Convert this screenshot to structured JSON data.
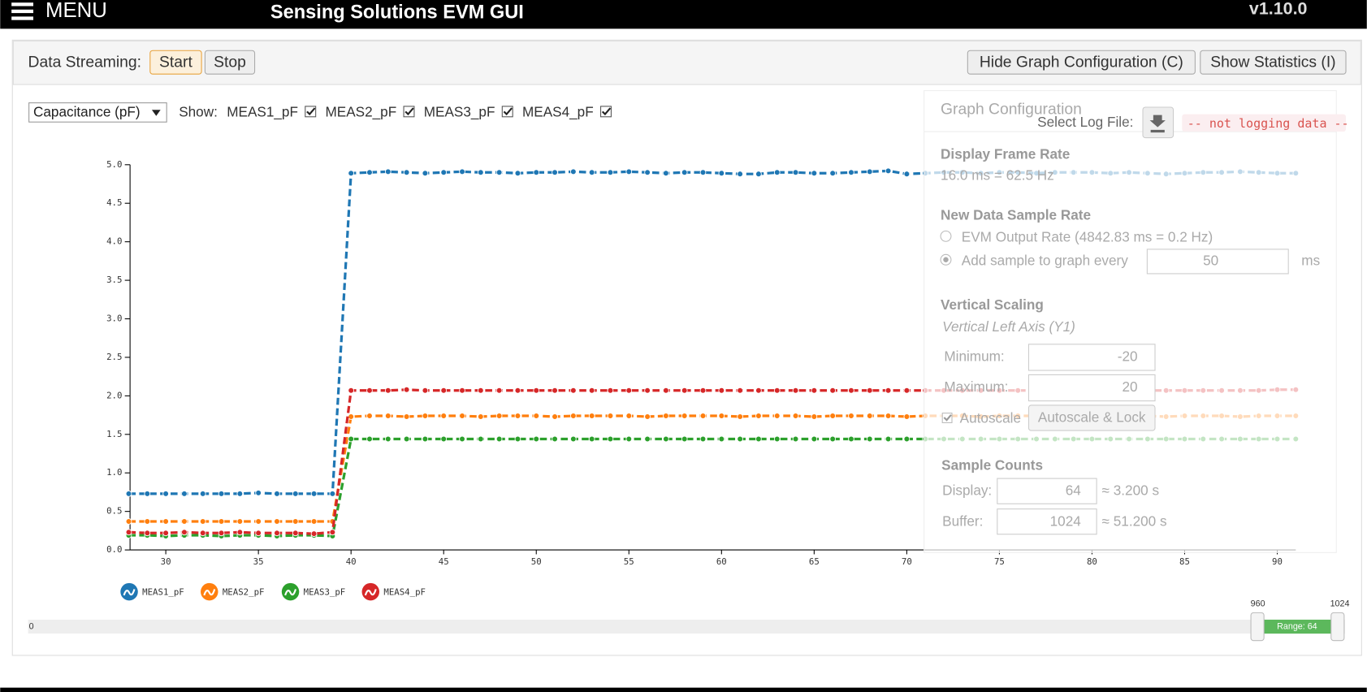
{
  "header": {
    "menu": "MENU",
    "title": "Sensing Solutions EVM GUI",
    "version": "v1.10.0"
  },
  "toolbar": {
    "streaming_label": "Data Streaming:",
    "start": "Start",
    "stop": "Stop",
    "hide_config": "Hide Graph Configuration (C)",
    "show_stats": "Show Statistics (I)"
  },
  "controls": {
    "unit_select": "Capacitance (pF)",
    "show_label": "Show:",
    "toggles": [
      "MEAS1_pF",
      "MEAS2_pF",
      "MEAS3_pF",
      "MEAS4_pF"
    ]
  },
  "chart_data": {
    "type": "line",
    "x": [
      28,
      29,
      30,
      31,
      32,
      33,
      34,
      35,
      36,
      37,
      38,
      39,
      40,
      41,
      42,
      43,
      44,
      45,
      46,
      47,
      48,
      49,
      50,
      51,
      52,
      53,
      54,
      55,
      56,
      57,
      58,
      59,
      60,
      61,
      62,
      63,
      64,
      65,
      66,
      67,
      68,
      69,
      70,
      71,
      72,
      73,
      74,
      75,
      76,
      77,
      78,
      79,
      80,
      81,
      82,
      83,
      84,
      85,
      86,
      87,
      88,
      89,
      90,
      91
    ],
    "xlim": [
      28,
      91
    ],
    "ylim": [
      0,
      5
    ],
    "xticks": [
      30,
      35,
      40,
      45,
      50,
      55,
      60,
      65,
      70,
      75,
      80,
      85,
      90
    ],
    "yticks": [
      {
        "value": 0,
        "label": "0.0"
      },
      0.5,
      {
        "value": 1,
        "label": "1.0"
      },
      1.5,
      {
        "value": 2,
        "label": "2.0"
      },
      2.5,
      {
        "value": 3,
        "label": "3.0"
      },
      3.5,
      {
        "value": 4,
        "label": "4.0"
      },
      4.5,
      {
        "value": 5,
        "label": "5.0"
      }
    ],
    "legend": "bottom-left",
    "series": [
      {
        "name": "MEAS1_pF",
        "color": "#1f77b4",
        "values": [
          0.73,
          0.73,
          0.73,
          0.73,
          0.73,
          0.73,
          0.73,
          0.74,
          0.73,
          0.73,
          0.73,
          0.73,
          4.89,
          4.9,
          4.91,
          4.9,
          4.89,
          4.9,
          4.91,
          4.9,
          4.9,
          4.89,
          4.9,
          4.9,
          4.91,
          4.9,
          4.9,
          4.91,
          4.9,
          4.89,
          4.9,
          4.9,
          4.89,
          4.88,
          4.88,
          4.9,
          4.9,
          4.89,
          4.89,
          4.9,
          4.91,
          4.92,
          4.88,
          4.89,
          4.9,
          4.9,
          4.89,
          4.9,
          4.9,
          4.89,
          4.9,
          4.9,
          4.9,
          4.89,
          4.9,
          4.89,
          4.88,
          4.89,
          4.9,
          4.9,
          4.91,
          4.9,
          4.89,
          4.89
        ]
      },
      {
        "name": "MEAS2_pF",
        "color": "#ff7f0e",
        "values": [
          0.37,
          0.37,
          0.37,
          0.37,
          0.37,
          0.37,
          0.37,
          0.37,
          0.37,
          0.37,
          0.37,
          0.37,
          1.73,
          1.74,
          1.74,
          1.73,
          1.74,
          1.74,
          1.74,
          1.73,
          1.74,
          1.74,
          1.74,
          1.73,
          1.74,
          1.74,
          1.74,
          1.74,
          1.73,
          1.74,
          1.74,
          1.74,
          1.74,
          1.73,
          1.74,
          1.74,
          1.74,
          1.73,
          1.74,
          1.74,
          1.74,
          1.74,
          1.73,
          1.74,
          1.74,
          1.74,
          1.73,
          1.74,
          1.74,
          1.74,
          1.74,
          1.73,
          1.74,
          1.74,
          1.74,
          1.74,
          1.73,
          1.74,
          1.74,
          1.74,
          1.73,
          1.74,
          1.74,
          1.74
        ]
      },
      {
        "name": "MEAS3_pF",
        "color": "#2ca02c",
        "values": [
          0.19,
          0.19,
          0.18,
          0.19,
          0.19,
          0.18,
          0.19,
          0.19,
          0.18,
          0.19,
          0.19,
          0.18,
          1.44,
          1.44,
          1.44,
          1.44,
          1.44,
          1.44,
          1.44,
          1.44,
          1.44,
          1.44,
          1.44,
          1.44,
          1.44,
          1.44,
          1.44,
          1.44,
          1.44,
          1.44,
          1.44,
          1.44,
          1.44,
          1.44,
          1.44,
          1.44,
          1.44,
          1.44,
          1.44,
          1.44,
          1.44,
          1.44,
          1.44,
          1.44,
          1.44,
          1.44,
          1.44,
          1.44,
          1.44,
          1.44,
          1.44,
          1.44,
          1.44,
          1.44,
          1.44,
          1.44,
          1.44,
          1.44,
          1.44,
          1.44,
          1.44,
          1.44,
          1.44,
          1.44
        ]
      },
      {
        "name": "MEAS4_pF",
        "color": "#d62728",
        "values": [
          0.23,
          0.22,
          0.22,
          0.23,
          0.22,
          0.22,
          0.23,
          0.22,
          0.22,
          0.22,
          0.21,
          0.23,
          2.07,
          2.07,
          2.07,
          2.08,
          2.07,
          2.07,
          2.07,
          2.07,
          2.07,
          2.07,
          2.07,
          2.07,
          2.07,
          2.07,
          2.07,
          2.07,
          2.07,
          2.07,
          2.07,
          2.07,
          2.07,
          2.07,
          2.07,
          2.07,
          2.07,
          2.07,
          2.07,
          2.07,
          2.07,
          2.07,
          2.07,
          2.07,
          2.07,
          2.07,
          2.07,
          2.07,
          2.07,
          2.07,
          2.07,
          2.07,
          2.07,
          2.07,
          2.07,
          2.07,
          2.07,
          2.07,
          2.07,
          2.07,
          2.07,
          2.07,
          2.08,
          2.08
        ]
      }
    ]
  },
  "graph_config": {
    "title": "Graph Configuration",
    "log_label": "Select Log File:",
    "log_status": "-- not logging data --",
    "frame_rate_heading": "Display Frame Rate",
    "frame_rate": "16.0 ms = 62.5 Hz",
    "sample_rate_heading": "New Data Sample Rate",
    "evm_rate": "EVM Output Rate (4842.83 ms = 0.2 Hz)",
    "add_sample": "Add sample to graph every",
    "add_sample_value": 50,
    "add_sample_unit": "ms",
    "vertical_heading": "Vertical Scaling",
    "vertical_axis": "Vertical Left Axis (Y1)",
    "minimum_label": "Minimum:",
    "minimum": -20,
    "maximum_label": "Maximum:",
    "maximum": 20,
    "autoscale": "Autoscale",
    "autoscale_lock": "Autoscale & Lock",
    "counts_heading": "Sample Counts",
    "display_label": "Display:",
    "display_count": 64,
    "display_time": "≈ 3.200 s",
    "buffer_label": "Buffer:",
    "buffer_count": 1024,
    "buffer_time": "≈ 51.200 s"
  },
  "range_slider": {
    "start": 0,
    "low": 960,
    "high": 1024,
    "range": "Range: 64"
  }
}
